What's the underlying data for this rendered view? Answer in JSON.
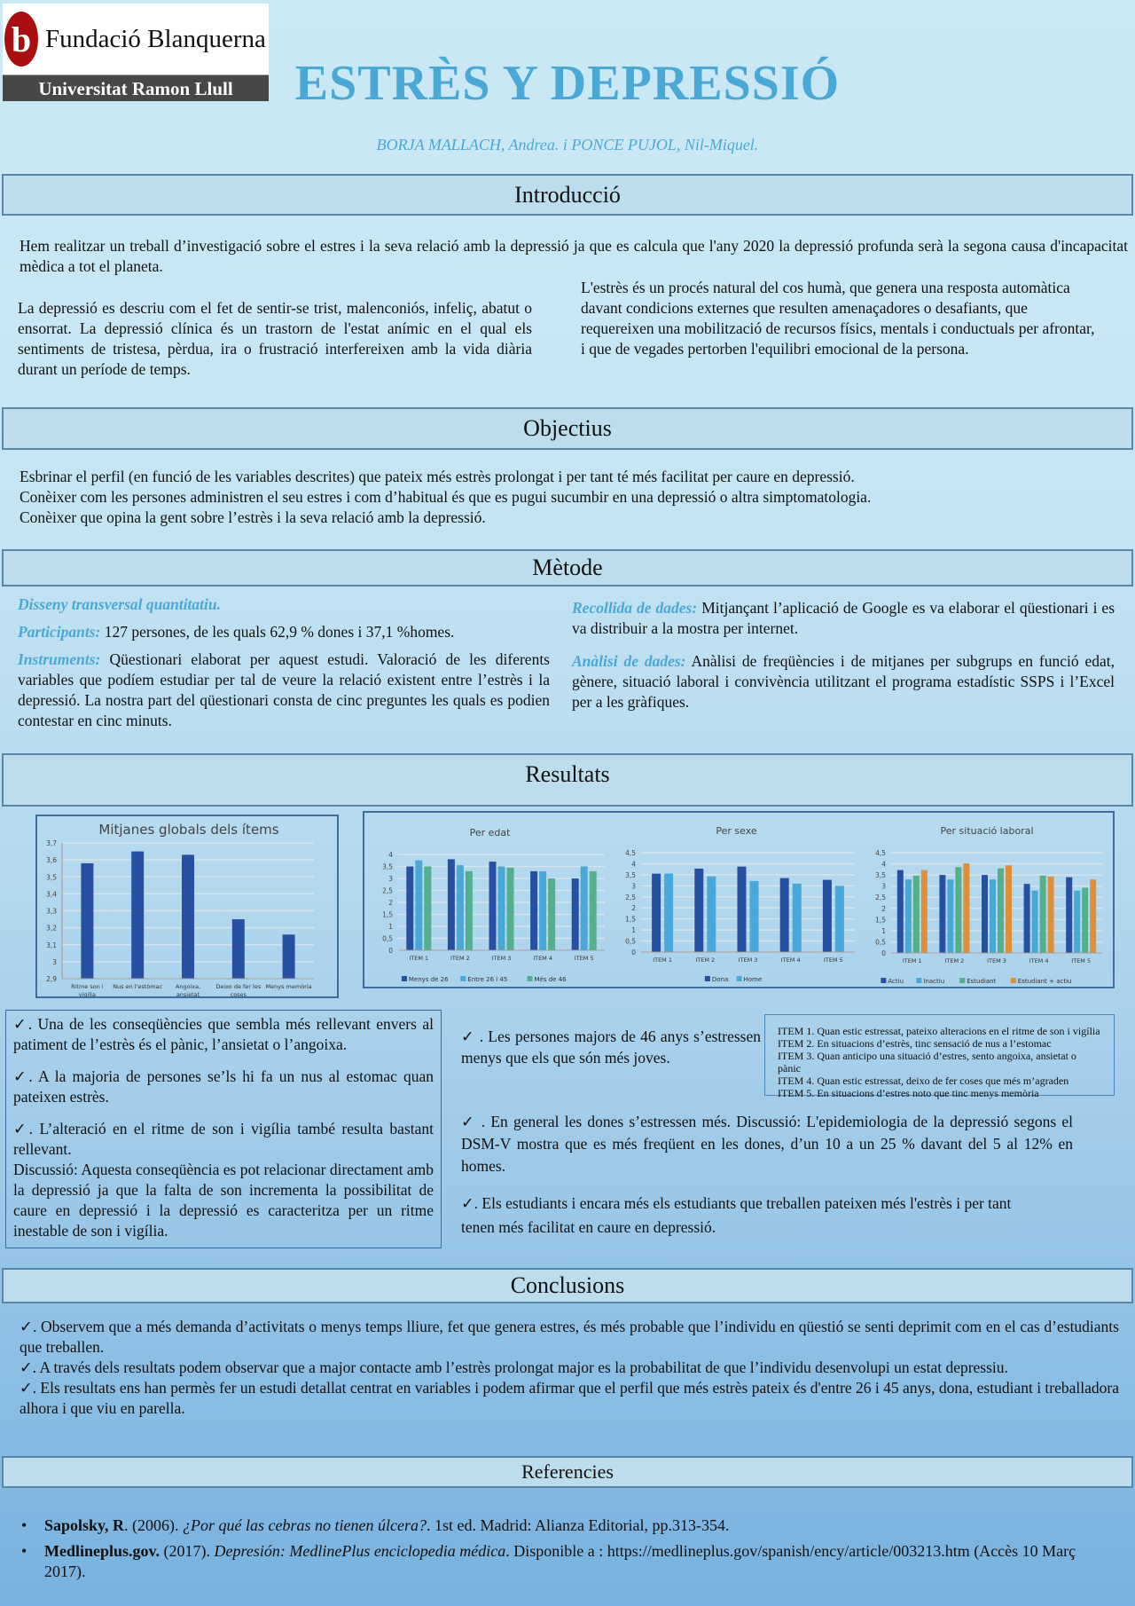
{
  "header": {
    "logo_top": "Fundació Blanquerna",
    "logo_bottom": "Universitat Ramon Llull",
    "logo_mark": "b",
    "title": "ESTRÈS Y DEPRESSIÓ",
    "authors": "BORJA MALLACH, Andrea. i PONCE PUJOL, Nil-Miquel."
  },
  "intro": {
    "heading": "Introducció",
    "p1": "Hem realitzar un treball d’investigació sobre el estres i la seva relació amb la depressió ja que es calcula que l'any 2020 la depressió profunda serà la segona causa d'incapacitat mèdica a tot el planeta.",
    "p2": "La depressió es descriu com el fet de sentir-se trist, malenconiós, infeliç, abatut o ensorrat. La depressió clínica és un trastorn de l'estat anímic en el qual els sentiments de tristesa, pèrdua, ira o frustració interfereixen amb la vida diària durant un període de temps.",
    "p3": "L'estrès és un procés natural del cos humà, que genera una resposta automàtica davant condicions externes que resulten amenaçadores o desafiants, que requereixen una mobilització de recursos físics, mentals i conductuals per afrontar, i que de vegades pertorben l'equilibri emocional de la persona."
  },
  "objectius": {
    "heading": "Objectius",
    "lines": [
      "Esbrinar el perfil (en funció de les variables descrites) que pateix més estrès prolongat i per tant té més facilitat per caure en depressió.",
      "Conèixer com les persones administren el seu estres i com d’habitual és que es pugui sucumbir en una depressió o altra simptomatologia.",
      "Conèixer que opina la gent sobre l’estrès i la seva relació amb la depressió."
    ]
  },
  "metode": {
    "heading": "Mètode",
    "disseny": "Disseny transversal quantitatiu.",
    "participants_label": "Participants:",
    "participants": " 127 persones, de les quals 62,9 % dones i 37,1 %homes.",
    "instruments_label": "Instruments:",
    "instruments": " Qüestionari elaborat per aquest estudi. Valoració de les diferents variables que podíem estudiar per tal de veure la relació existent entre l’estrès i la depressió. La nostra part del qüestionari consta de cinc preguntes les quals es podien contestar en cinc minuts.",
    "recollida_label": "Recollida de dades:",
    "recollida": " Mitjançant l’aplicació de Google es va elaborar el qüestionari i es va distribuir a la mostra per internet.",
    "analisi_label": "Anàlisi de dades:",
    "analisi": " Anàlisi de freqüències i de mitjanes per subgrups en funció edat, gènere, situació laboral i convivència utilitzant el programa estadístic SSPS i l’Excel per a les gràfiques."
  },
  "resultats": {
    "heading": "Resultats",
    "left_box": [
      "✓. Una de les conseqüències que sembla més rellevant envers al patiment de l’estrès és el pànic, l’ansietat o l’angoixa.",
      "✓. A la majoria de persones se’ls hi fa un nus al estomac quan pateixen estrès.",
      "✓. L’alteració en el ritme de son i vigília també resulta bastant rellevant.",
      "Discussió: Aquesta conseqüència es pot relacionar directament amb la depressió ja que la falta de son incrementa la possibilitat de caure en depressió i la depressió es caracteritza per un ritme inestable de son i vigília."
    ],
    "r1": "✓ . Les persones majors de 46 anys s’estressen menys que els que són més joves.",
    "r2a": "✓ . En general les dones s’estressen més.",
    "r2b": " Discussió: L'epidemiologia de la depressió segons el DSM-V mostra que es més freqüent en les dones, d’un 10 a un 25 % davant del 5 al 12% en homes.",
    "r3": "✓. Els estudiants i encara més els estudiants que treballen pateixen més l'estrès i per tant tenen més facilitat en caure en depressió.",
    "items": [
      "ITEM 1. Quan estic estressat, pateixo alteracions en el ritme de son i vigília",
      "ITEM 2. En situacions d’estrès, tinc sensació de nus a l’estomac",
      "ITEM 3. Quan anticipo una situació d’estres, sento angoixa, ansietat o pànic",
      "ITEM 4. Quan estic estressat, deixo de fer coses que més m’agraden",
      "ITEM 5. En situacions d’estres noto que tinc menys memòria"
    ]
  },
  "conclusions": {
    "heading": "Conclusions",
    "lines": [
      "✓. Observem que a més demanda d’activitats o menys temps lliure, fet que genera estres, és més probable que l’individu en qüestió se senti deprimit com en el cas d’estudiants que treballen.",
      "✓. A través dels resultats podem observar que a major contacte amb l’estrès prolongat major es la probabilitat de que l’individu desenvolupi un estat depressiu.",
      "✓. Els resultats ens han permès fer un estudi detallat centrat en variables i podem afirmar que el perfil que més estrès pateix és d'entre 26 i 45 anys, dona, estudiant i treballadora alhora i que viu en parella."
    ]
  },
  "referencies": {
    "heading": "Referencies",
    "items": [
      {
        "author": "Sapolsky, R",
        "rest": ". (2006). ",
        "title": "¿Por qué las cebras no tienen úlcera?",
        "tail": ". 1st ed. Madrid: Alianza Editorial, pp.313-354."
      },
      {
        "author": "Medlineplus.gov.",
        "rest": " (2017). ",
        "title": "Depresión: MedlinePlus enciclopedia médica",
        "tail": ". Disponible a : https://medlineplus.gov/spanish/ency/article/003213.htm (Accès 10 Març 2017)."
      }
    ]
  },
  "chart_data": [
    {
      "type": "bar",
      "title": "Mitjanes globals dels ítems",
      "categories": [
        "Ritme son i vigilia",
        "Nus en l'estòmac",
        "Angoixa, ansietat",
        "Deixo de fer les coses",
        "Menys memòria"
      ],
      "ylim": [
        2.9,
        3.7
      ],
      "yticks": [
        "2,9",
        "3",
        "3,1",
        "3,2",
        "3,3",
        "3,4",
        "3,5",
        "3,6",
        "3,7"
      ],
      "series": [
        {
          "values": [
            3.58,
            3.65,
            3.63,
            3.25,
            3.16
          ],
          "color": "#2750a3"
        }
      ],
      "grid": true
    },
    {
      "type": "bar",
      "title": "Per edat",
      "categories": [
        "ITEM 1",
        "ITEM 2",
        "ITEM 3",
        "ITEM 4",
        "ITEM 5"
      ],
      "ylim": [
        0,
        4
      ],
      "yticks": [
        "0",
        "0,5",
        "1",
        "1,5",
        "2",
        "2,5",
        "3",
        "3,5",
        "4"
      ],
      "legend": "bottom",
      "series": [
        {
          "name": "Menys de 26",
          "values": [
            3.5,
            3.8,
            3.7,
            3.3,
            3.0
          ],
          "color": "#2750a3"
        },
        {
          "name": "Entre 26 i 45",
          "values": [
            3.75,
            3.55,
            3.5,
            3.3,
            3.5
          ],
          "color": "#4aa8d6"
        },
        {
          "name": "Més de 46",
          "values": [
            3.5,
            3.3,
            3.45,
            3.0,
            3.3
          ],
          "color": "#52b08c"
        }
      ],
      "grid": true
    },
    {
      "type": "bar",
      "title": "Per sexe",
      "categories": [
        "ITEM 1",
        "ITEM 2",
        "ITEM 3",
        "ITEM 4",
        "ITEM 5"
      ],
      "ylim": [
        0,
        4.5
      ],
      "yticks": [
        "0",
        "0,5",
        "1",
        "1,5",
        "2",
        "2,5",
        "3",
        "3,5",
        "4",
        "4,5"
      ],
      "legend": "bottom",
      "series": [
        {
          "name": "Dona",
          "values": [
            3.55,
            3.78,
            3.87,
            3.35,
            3.27
          ],
          "color": "#2750a3"
        },
        {
          "name": "Home",
          "values": [
            3.55,
            3.43,
            3.22,
            3.1,
            3.0
          ],
          "color": "#4aa8d6"
        }
      ],
      "grid": true
    },
    {
      "type": "bar",
      "title": "Per situació laboral",
      "categories": [
        "ITEM 1",
        "ITEM 2",
        "ITEM 3",
        "ITEM 4",
        "ITEM 5"
      ],
      "ylim": [
        0,
        4.5
      ],
      "yticks": [
        "0",
        "0,5",
        "1",
        "1,5",
        "2",
        "2,5",
        "3",
        "3,5",
        "4",
        "4,5"
      ],
      "legend": "bottom",
      "series": [
        {
          "name": "Actiu",
          "values": [
            3.72,
            3.5,
            3.5,
            3.1,
            3.4
          ],
          "color": "#2750a3"
        },
        {
          "name": "Inactiu",
          "values": [
            3.3,
            3.3,
            3.3,
            2.8,
            2.8
          ],
          "color": "#4aa8d6"
        },
        {
          "name": "Estudiant",
          "values": [
            3.47,
            3.85,
            3.8,
            3.47,
            2.93
          ],
          "color": "#52b08c"
        },
        {
          "name": "Estudiant + actiu",
          "values": [
            3.72,
            4.02,
            3.93,
            3.43,
            3.3
          ],
          "color": "#e08e3a"
        }
      ],
      "grid": true
    }
  ]
}
